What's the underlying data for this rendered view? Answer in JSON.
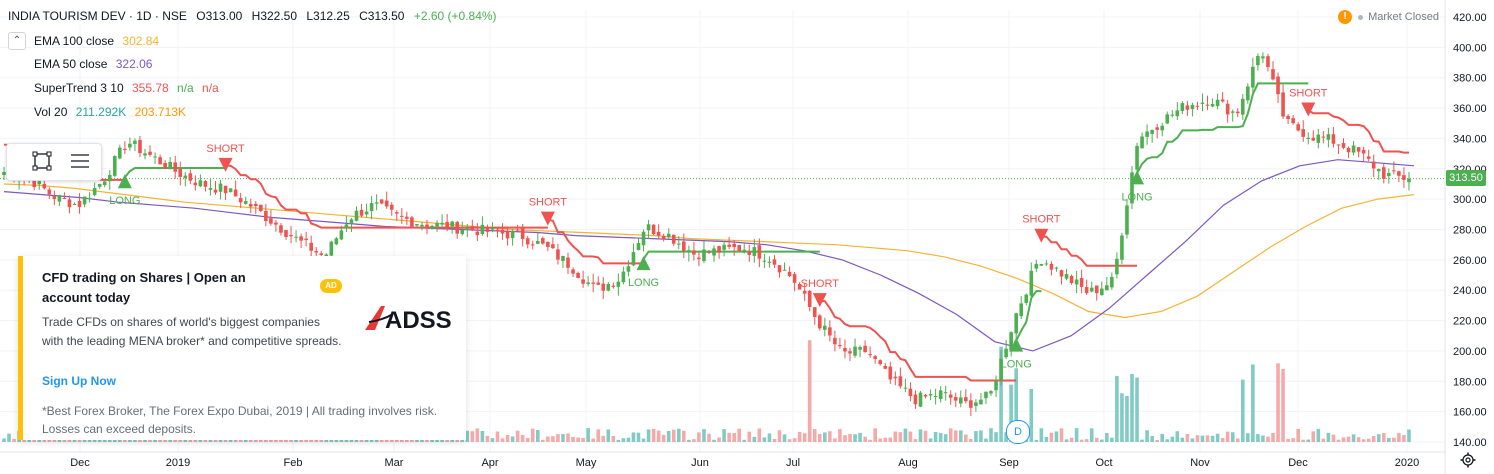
{
  "header": {
    "symbol": "INDIA TOURISM DEV · 1D · NSE",
    "open": "O313.00",
    "high": "H322.50",
    "low": "L312.25",
    "close": "C313.50",
    "change": "+2.60 (+0.84%)"
  },
  "indicators": {
    "ema100": {
      "label": "EMA 100 close",
      "value": "302.84"
    },
    "ema50": {
      "label": "EMA 50 close",
      "value": "322.06"
    },
    "supertrend": {
      "label": "SuperTrend 3 10",
      "value": "355.78",
      "extra1": "n/a",
      "extra2": "n/a"
    },
    "vol": {
      "label": "Vol 20",
      "value1": "211.292K",
      "value2": "203.713K"
    }
  },
  "market_status": "Market Closed",
  "current_price_tag": "313.50",
  "ad": {
    "title": "CFD trading on Shares | Open an account today",
    "badge": "AD",
    "body": "Trade CFDs on shares of world's biggest companies with the leading MENA broker* and competitive spreads.",
    "link": "Sign Up Now",
    "note": "*Best Forex Broker, The Forex Expo Dubai, 2019 | All trading involves risk. Losses can exceed deposits.",
    "logo_text": "ADSS"
  },
  "dividend_marker": "D",
  "colors": {
    "up": "#4caf50",
    "down": "#ef5350",
    "ema100": "#f5b335",
    "ema50": "#7e57c2",
    "supertrend_up": "#4caf50",
    "supertrend_down": "#ef5350",
    "vol_up": "#80cbc4",
    "vol_down": "#f5a9a9"
  },
  "chart_data": {
    "type": "candlestick",
    "price_axis": {
      "min": 140,
      "max": 420,
      "ticks": [
        "140.00",
        "160.00",
        "180.00",
        "200.00",
        "220.00",
        "240.00",
        "260.00",
        "280.00",
        "300.00",
        "320.00",
        "340.00",
        "360.00",
        "380.00",
        "400.00",
        "420.00"
      ]
    },
    "time_axis": {
      "ticks": [
        "Dec",
        "2019",
        "Feb",
        "Mar",
        "Apr",
        "May",
        "Jun",
        "Jul",
        "Aug",
        "Sep",
        "Oct",
        "Nov",
        "Dec",
        "2020"
      ]
    },
    "close_series": [
      {
        "date": "2018-11-26",
        "close": 318
      },
      {
        "date": "2018-12-03",
        "close": 314
      },
      {
        "date": "2018-12-10",
        "close": 302
      },
      {
        "date": "2018-12-17",
        "close": 296
      },
      {
        "date": "2018-12-24",
        "close": 312
      },
      {
        "date": "2018-12-31",
        "close": 338
      },
      {
        "date": "2019-01-07",
        "close": 328
      },
      {
        "date": "2019-01-14",
        "close": 318
      },
      {
        "date": "2019-01-21",
        "close": 310
      },
      {
        "date": "2019-01-28",
        "close": 306
      },
      {
        "date": "2019-02-04",
        "close": 296
      },
      {
        "date": "2019-02-11",
        "close": 284
      },
      {
        "date": "2019-02-18",
        "close": 272
      },
      {
        "date": "2019-02-25",
        "close": 262
      },
      {
        "date": "2019-03-04",
        "close": 288
      },
      {
        "date": "2019-03-11",
        "close": 296
      },
      {
        "date": "2019-03-18",
        "close": 288
      },
      {
        "date": "2019-03-25",
        "close": 284
      },
      {
        "date": "2019-04-01",
        "close": 282
      },
      {
        "date": "2019-04-08",
        "close": 280
      },
      {
        "date": "2019-04-15",
        "close": 278
      },
      {
        "date": "2019-04-22",
        "close": 276
      },
      {
        "date": "2019-04-29",
        "close": 268
      },
      {
        "date": "2019-05-06",
        "close": 256
      },
      {
        "date": "2019-05-13",
        "close": 240
      },
      {
        "date": "2019-05-20",
        "close": 248
      },
      {
        "date": "2019-05-27",
        "close": 282
      },
      {
        "date": "2019-06-03",
        "close": 276
      },
      {
        "date": "2019-06-10",
        "close": 264
      },
      {
        "date": "2019-06-17",
        "close": 266
      },
      {
        "date": "2019-06-24",
        "close": 268
      },
      {
        "date": "2019-07-01",
        "close": 262
      },
      {
        "date": "2019-07-08",
        "close": 248
      },
      {
        "date": "2019-07-15",
        "close": 220
      },
      {
        "date": "2019-07-22",
        "close": 198
      },
      {
        "date": "2019-07-29",
        "close": 200
      },
      {
        "date": "2019-08-05",
        "close": 180
      },
      {
        "date": "2019-08-12",
        "close": 168
      },
      {
        "date": "2019-08-19",
        "close": 172
      },
      {
        "date": "2019-08-26",
        "close": 165
      },
      {
        "date": "2019-09-02",
        "close": 170
      },
      {
        "date": "2019-09-09",
        "close": 222
      },
      {
        "date": "2019-09-16",
        "close": 262
      },
      {
        "date": "2019-09-23",
        "close": 250
      },
      {
        "date": "2019-09-30",
        "close": 238
      },
      {
        "date": "2019-10-07",
        "close": 246
      },
      {
        "date": "2019-10-14",
        "close": 340
      },
      {
        "date": "2019-10-21",
        "close": 352
      },
      {
        "date": "2019-10-28",
        "close": 362
      },
      {
        "date": "2019-11-04",
        "close": 366
      },
      {
        "date": "2019-11-11",
        "close": 356
      },
      {
        "date": "2019-11-18",
        "close": 400
      },
      {
        "date": "2019-11-25",
        "close": 350
      },
      {
        "date": "2019-12-02",
        "close": 342
      },
      {
        "date": "2019-12-09",
        "close": 338
      },
      {
        "date": "2019-12-16",
        "close": 330
      },
      {
        "date": "2019-12-23",
        "close": 316
      },
      {
        "date": "2019-12-30",
        "close": 313.5
      }
    ],
    "ema100_series": [
      310,
      309,
      307,
      304,
      301,
      298,
      296,
      294,
      292,
      290,
      288,
      286,
      284,
      282,
      280,
      279,
      278,
      277,
      276,
      274,
      273,
      272,
      271,
      270,
      268,
      266,
      262,
      256,
      248,
      238,
      226,
      222,
      226,
      236,
      252,
      268,
      282,
      294,
      300,
      303
    ],
    "ema50_series": [
      305,
      303,
      301,
      298,
      296,
      294,
      291,
      288,
      286,
      284,
      282,
      281,
      280,
      279,
      278,
      276,
      275,
      274,
      273,
      272,
      270,
      266,
      260,
      250,
      238,
      224,
      206,
      200,
      210,
      228,
      250,
      272,
      296,
      312,
      322,
      326,
      324,
      322
    ],
    "signals": [
      {
        "type": "LONG",
        "date": "2018-12-31"
      },
      {
        "type": "SHORT",
        "date": "2019-01-28"
      },
      {
        "type": "SHORT",
        "date": "2019-04-29"
      },
      {
        "type": "LONG",
        "date": "2019-05-27"
      },
      {
        "type": "SHORT",
        "date": "2019-07-15"
      },
      {
        "type": "LONG",
        "date": "2019-09-09"
      },
      {
        "type": "SHORT",
        "date": "2019-09-16"
      },
      {
        "type": "LONG",
        "date": "2019-10-14"
      },
      {
        "type": "SHORT",
        "date": "2019-12-02"
      }
    ]
  }
}
